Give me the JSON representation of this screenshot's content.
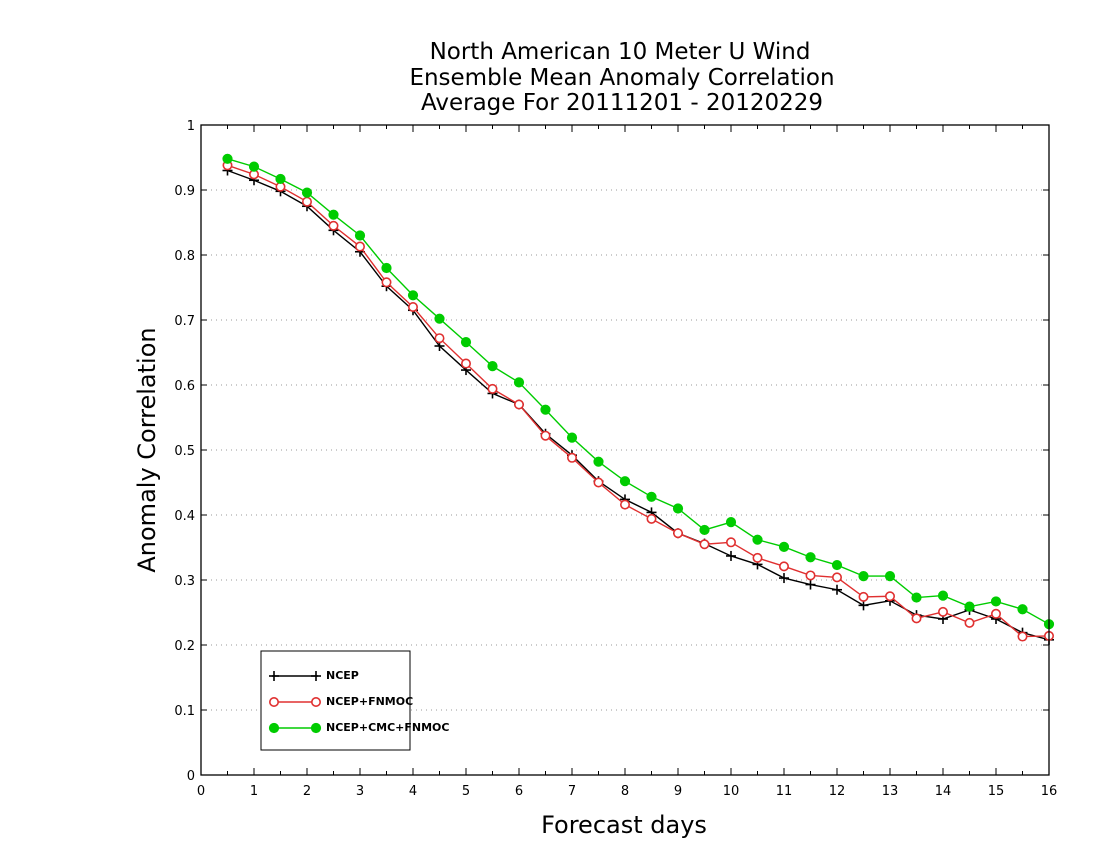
{
  "chart_data": {
    "type": "line",
    "title_lines": [
      "North American 10 Meter U Wind",
      "Ensemble Mean Anomaly Correlation",
      "Average For 20111201 - 20120229"
    ],
    "xlabel": "Forecast days",
    "ylabel": "Anomaly Correlation",
    "xlim": [
      0,
      16
    ],
    "ylim": [
      0,
      1
    ],
    "xticks": [
      "0",
      "1",
      "2",
      "3",
      "4",
      "5",
      "6",
      "7",
      "8",
      "9",
      "10",
      "11",
      "12",
      "13",
      "14",
      "15",
      "16"
    ],
    "yticks": [
      "0",
      "0.1",
      "0.2",
      "0.3",
      "0.4",
      "0.5",
      "0.6",
      "0.7",
      "0.8",
      "0.9",
      "1"
    ],
    "grid": "horizontal dotted",
    "legend_position": "bottom-left",
    "x": [
      0.5,
      1,
      1.5,
      2,
      2.5,
      3,
      3.5,
      4,
      4.5,
      5,
      5.5,
      6,
      6.5,
      7,
      7.5,
      8,
      8.5,
      9,
      9.5,
      10,
      10.5,
      11,
      11.5,
      12,
      12.5,
      13,
      13.5,
      14,
      14.5,
      15,
      15.5,
      16
    ],
    "series": [
      {
        "name": "NCEP",
        "color": "#000000",
        "marker": "plus",
        "values": [
          0.93,
          0.915,
          0.898,
          0.875,
          0.838,
          0.805,
          0.752,
          0.715,
          0.66,
          0.623,
          0.587,
          0.57,
          0.525,
          0.492,
          0.452,
          0.424,
          0.404,
          0.372,
          0.356,
          0.337,
          0.324,
          0.303,
          0.293,
          0.285,
          0.261,
          0.268,
          0.246,
          0.24,
          0.254,
          0.24,
          0.219,
          0.208
        ]
      },
      {
        "name": "NCEP+FNMOC",
        "color": "#e03030",
        "marker": "open-circle",
        "values": [
          0.938,
          0.924,
          0.905,
          0.882,
          0.845,
          0.813,
          0.758,
          0.72,
          0.672,
          0.633,
          0.594,
          0.57,
          0.522,
          0.488,
          0.45,
          0.416,
          0.394,
          0.372,
          0.355,
          0.358,
          0.334,
          0.321,
          0.307,
          0.304,
          0.274,
          0.275,
          0.241,
          0.251,
          0.234,
          0.248,
          0.213,
          0.214
        ]
      },
      {
        "name": "NCEP+CMC+FNMOC",
        "color": "#00cc00",
        "marker": "filled-circle",
        "values": [
          0.948,
          0.936,
          0.917,
          0.896,
          0.862,
          0.83,
          0.78,
          0.738,
          0.702,
          0.666,
          0.629,
          0.604,
          0.562,
          0.519,
          0.482,
          0.452,
          0.428,
          0.41,
          0.377,
          0.389,
          0.362,
          0.351,
          0.335,
          0.323,
          0.306,
          0.306,
          0.273,
          0.276,
          0.259,
          0.267,
          0.255,
          0.232
        ]
      }
    ]
  }
}
